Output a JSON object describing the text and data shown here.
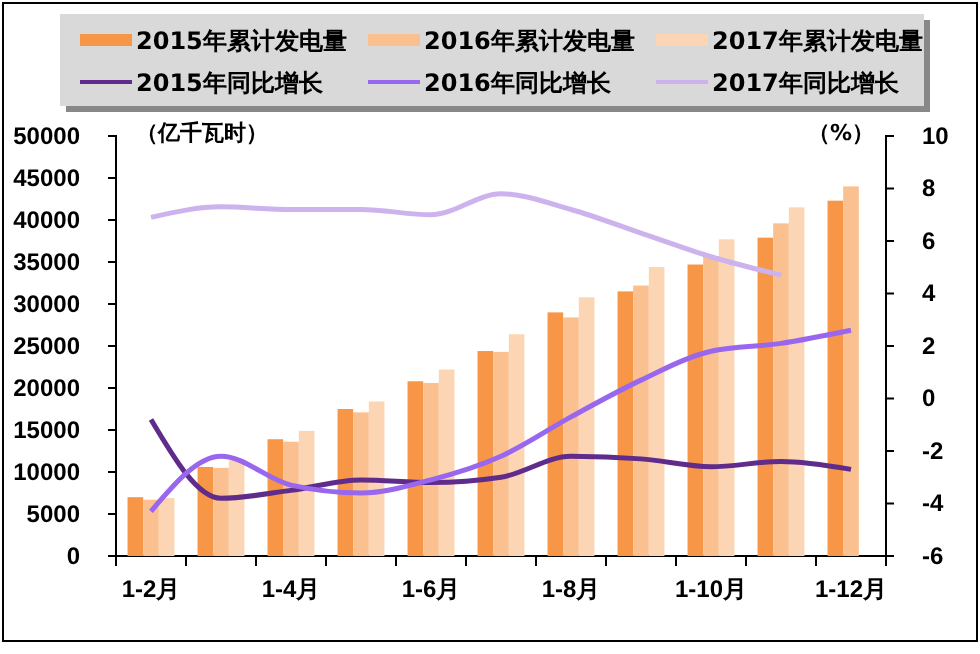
{
  "chart_data": {
    "type": "bar",
    "ylabel": "（亿千瓦时）",
    "y2label": "（%）",
    "categories": [
      "1-2月",
      null,
      "1-4月",
      null,
      "1-6月",
      null,
      "1-8月",
      null,
      "1-10月",
      null,
      "1-12月"
    ],
    "series": [
      {
        "name": "2015年累计发电量",
        "color": "#f79646",
        "values": [
          7000,
          10600,
          13900,
          17500,
          20800,
          24400,
          29000,
          31500,
          34700,
          37900,
          42300
        ]
      },
      {
        "name": "2016年累计发电量",
        "color": "#fac08f",
        "values": [
          6700,
          10500,
          13600,
          17100,
          20600,
          24300,
          28400,
          32200,
          35700,
          39600,
          44000
        ]
      },
      {
        "name": "2017年累计发电量",
        "color": "#fcd5b4",
        "values": [
          6900,
          11400,
          14900,
          18400,
          22200,
          26400,
          30800,
          34400,
          37700,
          41500,
          null
        ]
      },
      {
        "name": "2015年同比增长",
        "type": "line",
        "axis": "y2",
        "color": "#5f2c8c",
        "values": [
          -0.8,
          -3.8,
          -3.5,
          -3.1,
          -3.2,
          -3.0,
          -2.2,
          -2.3,
          -2.6,
          -2.4,
          -2.7
        ]
      },
      {
        "name": "2016年同比增长",
        "type": "line",
        "axis": "y2",
        "color": "#9966ee",
        "values": [
          -4.3,
          -2.2,
          -3.3,
          -3.6,
          -3.1,
          -2.2,
          -0.7,
          0.7,
          1.8,
          2.1,
          2.6
        ]
      },
      {
        "name": "2017年同比增长",
        "type": "line",
        "axis": "y2",
        "color": "#ccb3ee",
        "values": [
          6.9,
          7.3,
          7.2,
          7.2,
          7.0,
          7.8,
          7.2,
          6.3,
          5.4,
          4.7,
          null
        ]
      }
    ],
    "ylim": [
      0,
      50000
    ],
    "yticks": [
      0,
      5000,
      10000,
      15000,
      20000,
      25000,
      30000,
      35000,
      40000,
      45000,
      50000
    ],
    "y2lim": [
      -6,
      10
    ],
    "y2ticks": [
      -6,
      -4,
      -2,
      0,
      2,
      4,
      6,
      8,
      10
    ],
    "legend": "top",
    "grid": false,
    "marker": "none",
    "line_style": "solid"
  }
}
